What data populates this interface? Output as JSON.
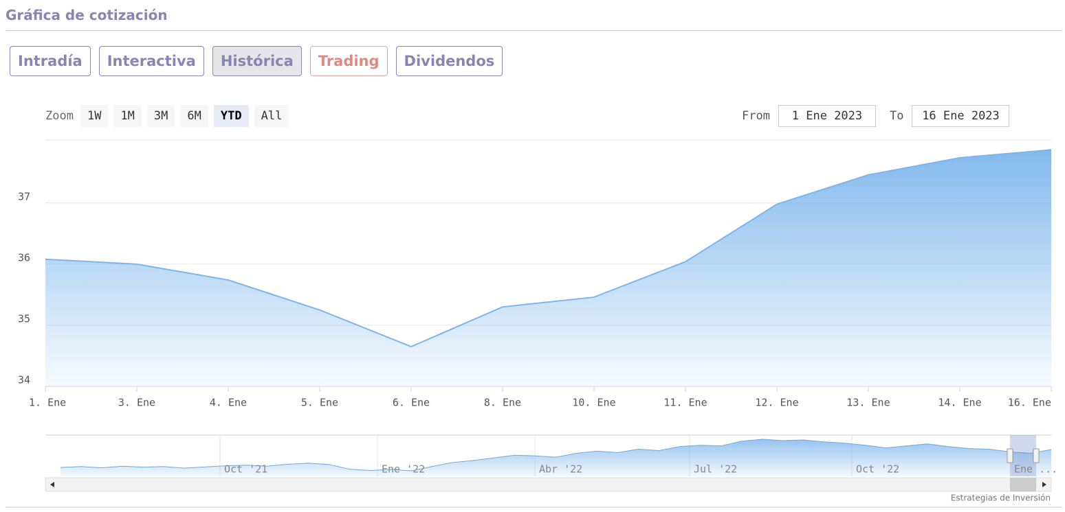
{
  "header": {
    "title": "Gráfica de cotización"
  },
  "tabs": [
    "Intradía",
    "Interactiva",
    "Histórica",
    "Trading",
    "Dividendos"
  ],
  "zoom": {
    "label": "Zoom",
    "buttons": [
      "1W",
      "1M",
      "3M",
      "6M",
      "YTD",
      "All"
    ]
  },
  "range": {
    "from_label": "From",
    "from": "1 Ene 2023",
    "to_label": "To",
    "to": "16 Ene 2023"
  },
  "chart_data": {
    "type": "area",
    "categories": [
      "1. Ene",
      "3. Ene",
      "4. Ene",
      "5. Ene",
      "6. Ene",
      "8. Ene",
      "10. Ene",
      "11. Ene",
      "12. Ene",
      "13. Ene",
      "14. Ene",
      "16. Ene"
    ],
    "values": [
      36.08,
      36.0,
      35.74,
      35.25,
      34.65,
      35.3,
      35.46,
      36.04,
      36.98,
      37.46,
      37.74,
      37.87
    ],
    "color": "#7cb5ec",
    "ylim": [
      34,
      38.03
    ],
    "yticks": [
      34,
      35,
      36,
      37
    ],
    "grid": true
  },
  "navigator": {
    "labels": [
      "Oct '21",
      "Ene '22",
      "Abr '22",
      "Jul '22",
      "Oct '22",
      "Ene ..."
    ],
    "values": [
      31.5,
      31.8,
      31.4,
      31.9,
      31.6,
      31.8,
      31.3,
      31.7,
      32.0,
      32.2,
      31.9,
      32.5,
      32.8,
      32.4,
      31.0,
      30.6,
      30.9,
      30.5,
      31.8,
      33.0,
      33.6,
      34.4,
      35.2,
      35.0,
      34.6,
      35.8,
      36.4,
      36.0,
      37.0,
      36.6,
      37.8,
      38.2,
      38.0,
      39.4,
      40.0,
      39.6,
      39.8,
      39.2,
      38.8,
      38.2,
      37.4,
      38.0,
      38.6,
      37.8,
      37.2,
      37.0,
      36.2,
      35.8,
      36.9
    ]
  },
  "credits": "Estrategias de Inversión"
}
